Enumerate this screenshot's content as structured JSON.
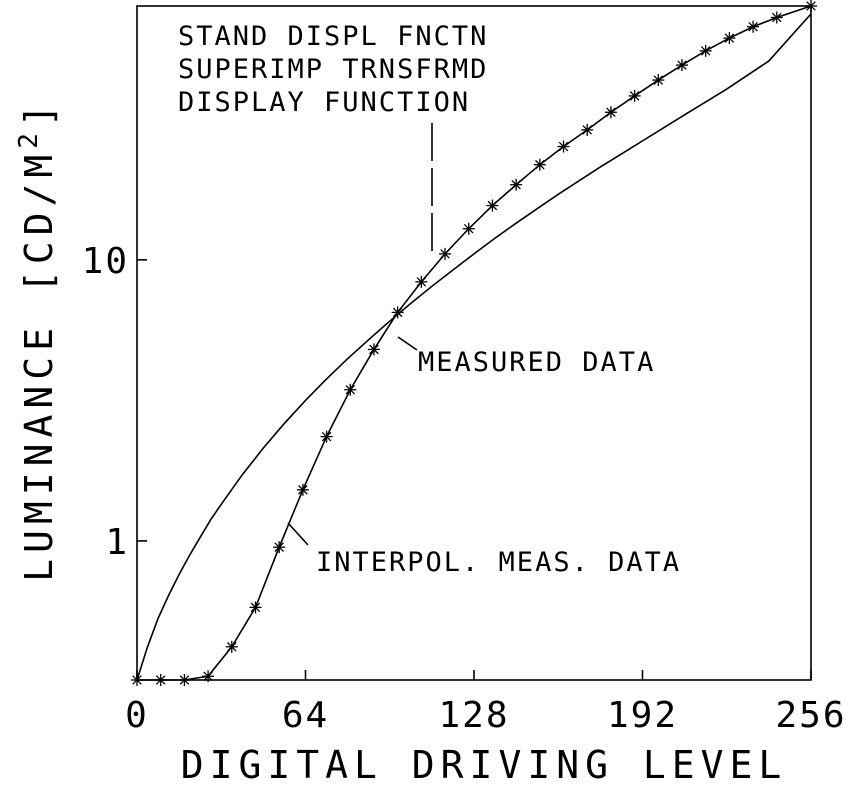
{
  "chart_data": {
    "type": "line",
    "xlabel": "DIGITAL DRIVING LEVEL",
    "ylabel": "LUMINANCE [CD/M²]",
    "ylabel_main": "LUMINANCE [CD/M",
    "ylabel_sup": "2",
    "ylabel_end": "]",
    "xlim": [
      0,
      256
    ],
    "ylim": [
      0.32,
      80
    ],
    "y_scale": "log",
    "x_ticks": [
      "0",
      "64",
      "128",
      "192",
      "256"
    ],
    "y_ticks": [
      "1",
      "10"
    ],
    "grid": false,
    "series": [
      {
        "name": "STAND DISPL FNCTN SUPERIMP TRNSFRMD DISPLAY FUNCTION",
        "style": "solid",
        "x": [
          0,
          4,
          8,
          12,
          16,
          20,
          24,
          28,
          32,
          40,
          48,
          56,
          64,
          72,
          80,
          88,
          96,
          104,
          112,
          120,
          128,
          136,
          144,
          152,
          160,
          176,
          192,
          208,
          224,
          240,
          256
        ],
        "y": [
          0.32,
          0.42,
          0.53,
          0.64,
          0.76,
          0.89,
          1.03,
          1.19,
          1.35,
          1.72,
          2.14,
          2.62,
          3.16,
          3.77,
          4.45,
          5.2,
          6.05,
          7.0,
          8.05,
          9.2,
          10.5,
          11.95,
          13.5,
          15.2,
          17.1,
          21.4,
          26.5,
          32.8,
          40.5,
          51,
          75
        ]
      },
      {
        "name": "INTERPOL. MEAS. DATA",
        "style": "solid",
        "x": [
          0,
          9,
          18,
          27,
          36,
          45,
          54,
          63,
          72,
          81,
          90,
          99,
          108,
          117,
          126,
          135,
          144,
          153,
          162,
          171,
          180,
          189,
          198,
          207,
          216,
          225,
          234,
          243,
          256
        ],
        "y": [
          0.32,
          0.32,
          0.32,
          0.33,
          0.42,
          0.58,
          0.95,
          1.52,
          2.35,
          3.45,
          4.8,
          6.5,
          8.35,
          10.5,
          12.9,
          15.6,
          18.5,
          21.8,
          25.3,
          29.0,
          33.5,
          38.3,
          43.6,
          49.3,
          55.4,
          61.5,
          67.5,
          72.8,
          80
        ]
      },
      {
        "name": "MEASURED DATA",
        "style": "markers",
        "marker": "asterisk",
        "x": [
          0,
          9,
          18,
          27,
          36,
          45,
          54,
          63,
          72,
          81,
          90,
          99,
          108,
          117,
          126,
          135,
          144,
          153,
          162,
          171,
          180,
          189,
          198,
          207,
          216,
          225,
          234,
          243,
          256
        ],
        "y": [
          0.32,
          0.32,
          0.32,
          0.33,
          0.42,
          0.58,
          0.95,
          1.52,
          2.35,
          3.45,
          4.8,
          6.5,
          8.35,
          10.5,
          12.9,
          15.6,
          18.5,
          21.8,
          25.3,
          29.0,
          33.5,
          38.3,
          43.6,
          49.3,
          55.4,
          61.5,
          67.5,
          72.8,
          80
        ]
      }
    ],
    "annotations": {
      "std_line1": "STAND DISPL FNCTN",
      "std_line2": "SUPERIMP TRNSFRMD",
      "std_line3": "DISPLAY FUNCTION",
      "measured": "MEASURED DATA",
      "interpol": "INTERPOL. MEAS. DATA"
    }
  }
}
